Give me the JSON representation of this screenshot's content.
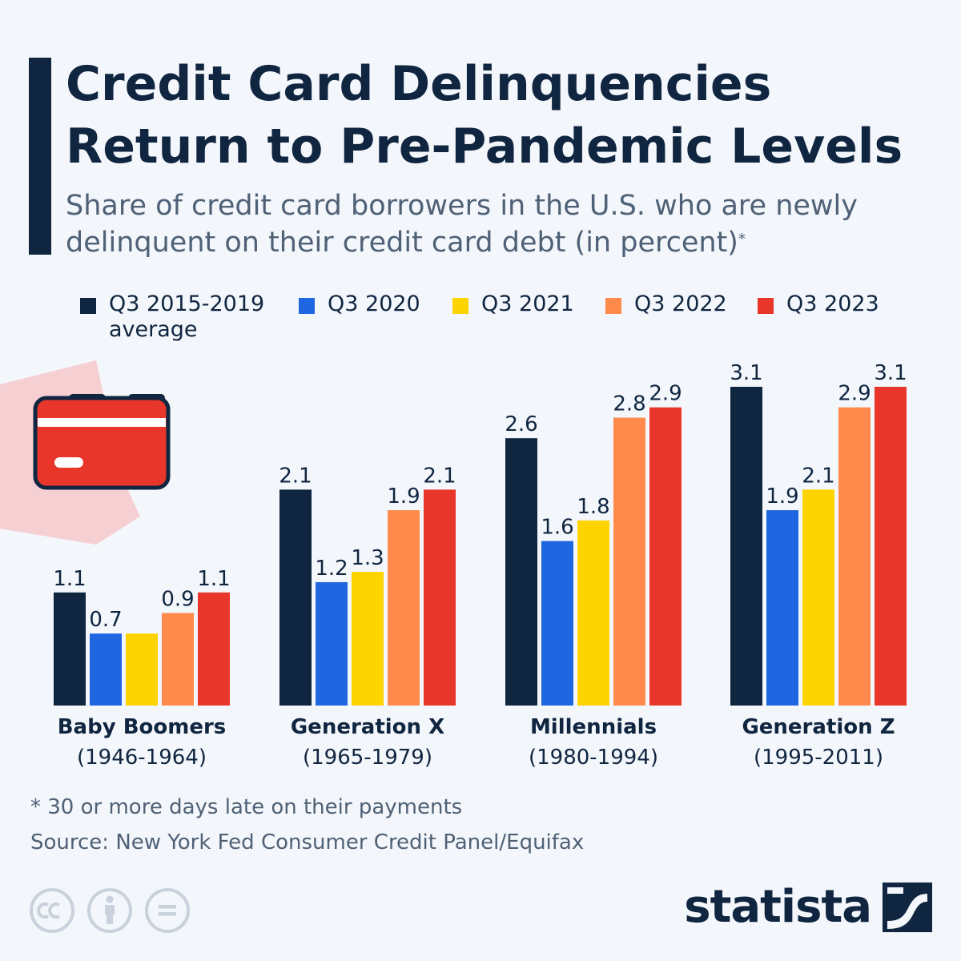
{
  "header": {
    "title": "Credit Card Delinquencies Return to Pre-Pandemic Levels",
    "subtitle": "Share of credit card borrowers in the U.S. who are newly delinquent on their credit card debt (in percent)",
    "subtitle_mark": "*"
  },
  "colors": {
    "accent": "#0f2540",
    "background": "#f3f6fa",
    "card_red": "#e8362a",
    "card_blob": "#f6cfd3"
  },
  "chart_data": {
    "type": "bar",
    "categories": [
      "Baby Boomers",
      "Generation X",
      "Millennials",
      "Generation Z"
    ],
    "category_years": [
      "(1946-1964)",
      "(1965-1979)",
      "(1980-1994)",
      "(1995-2011)"
    ],
    "series": [
      {
        "name": "Q3 2015-2019 average",
        "color": "#0f2540",
        "values": [
          1.1,
          2.1,
          2.6,
          3.1
        ]
      },
      {
        "name": "Q3 2020",
        "color": "#1f67e0",
        "values": [
          0.7,
          1.2,
          1.6,
          1.9
        ]
      },
      {
        "name": "Q3 2021",
        "color": "#fdd300",
        "values": [
          0.7,
          1.3,
          1.8,
          2.1
        ]
      },
      {
        "name": "Q3 2022",
        "color": "#ff8a4c",
        "values": [
          0.9,
          1.9,
          2.8,
          2.9
        ]
      },
      {
        "name": "Q3 2023",
        "color": "#e8362a",
        "values": [
          1.1,
          2.1,
          2.9,
          3.1
        ]
      }
    ],
    "data_labels": [
      [
        "1.1",
        "0.7",
        "",
        "0.9",
        "1.1"
      ],
      [
        "2.1",
        "1.2",
        "1.3",
        "1.9",
        "2.1"
      ],
      [
        "2.6",
        "1.6",
        "1.8",
        "2.8",
        "2.9"
      ],
      [
        "3.1",
        "1.9",
        "2.1",
        "2.9",
        "3.1"
      ]
    ],
    "ylim": [
      0,
      3.1
    ],
    "grid": false,
    "legend_position": "top"
  },
  "legend": {
    "items": [
      {
        "label": "Q3 2015-2019",
        "label2": "average",
        "icon": "square-swatch"
      },
      {
        "label": "Q3 2020",
        "icon": "square-swatch"
      },
      {
        "label": "Q3 2021",
        "icon": "square-swatch"
      },
      {
        "label": "Q3 2022",
        "icon": "square-swatch"
      },
      {
        "label": "Q3 2023",
        "icon": "square-swatch"
      }
    ]
  },
  "footer": {
    "footnote": "* 30 or more days late on their payments",
    "source": "Source: New York Fed Consumer Credit Panel/Equifax",
    "brand": "statista",
    "license_icons": [
      "cc-icon",
      "attribution-icon",
      "no-derivatives-icon"
    ]
  },
  "decoration": {
    "illustration_icon": "credit-card-icon"
  }
}
